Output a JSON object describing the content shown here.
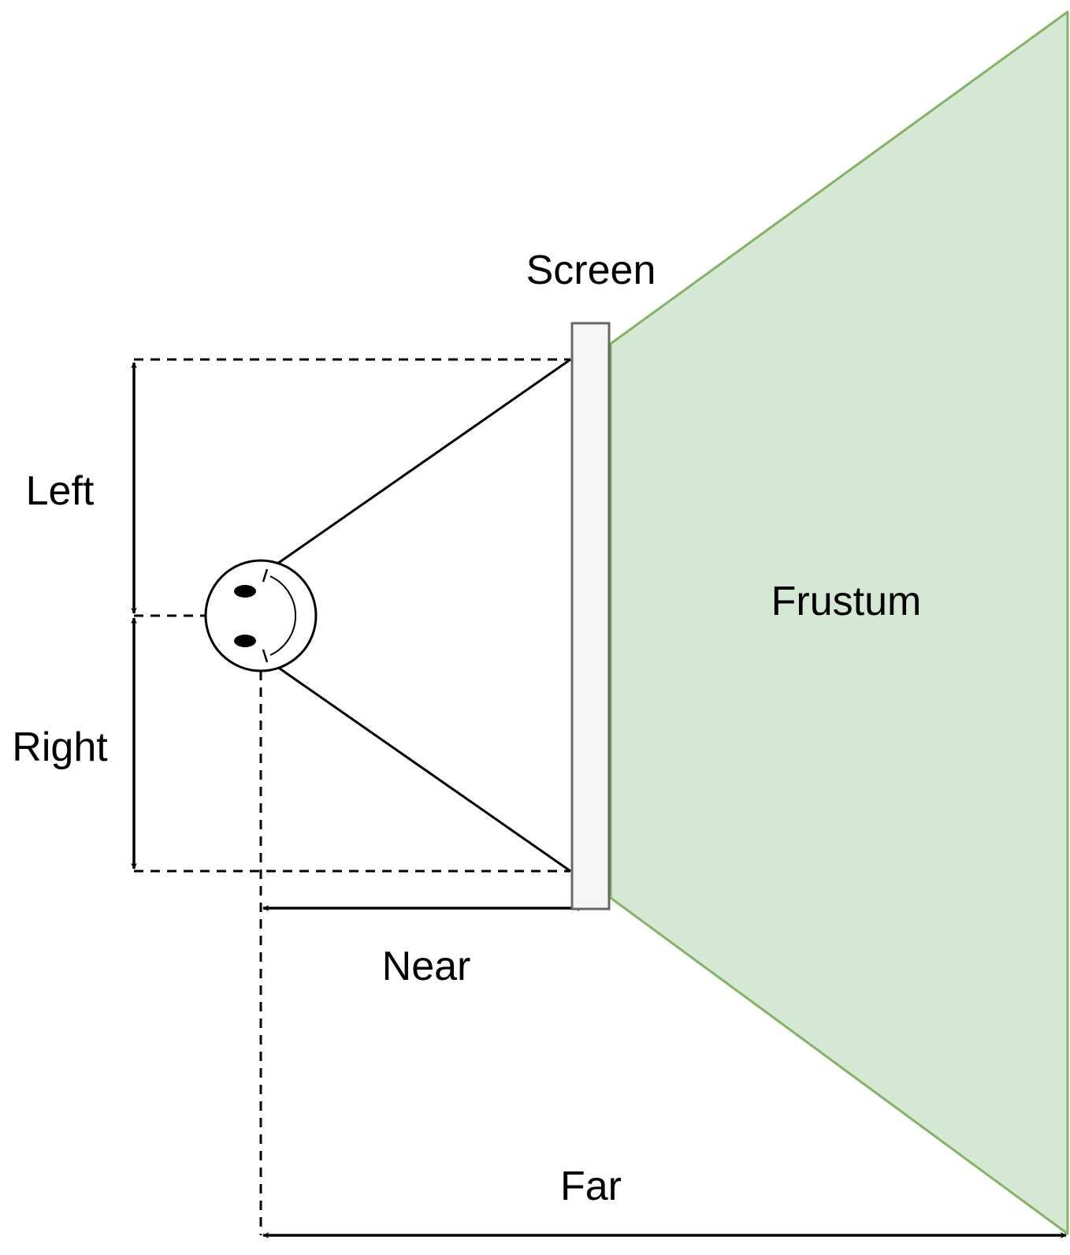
{
  "labels": {
    "screen": "Screen",
    "left": "Left",
    "right": "Right",
    "near": "Near",
    "far": "Far",
    "frustum": "Frustum"
  },
  "colors": {
    "frustum_fill": "#d5e8d4",
    "frustum_stroke": "#82b366",
    "screen_fill": "#f5f5f5",
    "screen_stroke": "#666666",
    "line": "#000000"
  },
  "icons": {
    "viewer": "smiley-face-icon"
  }
}
